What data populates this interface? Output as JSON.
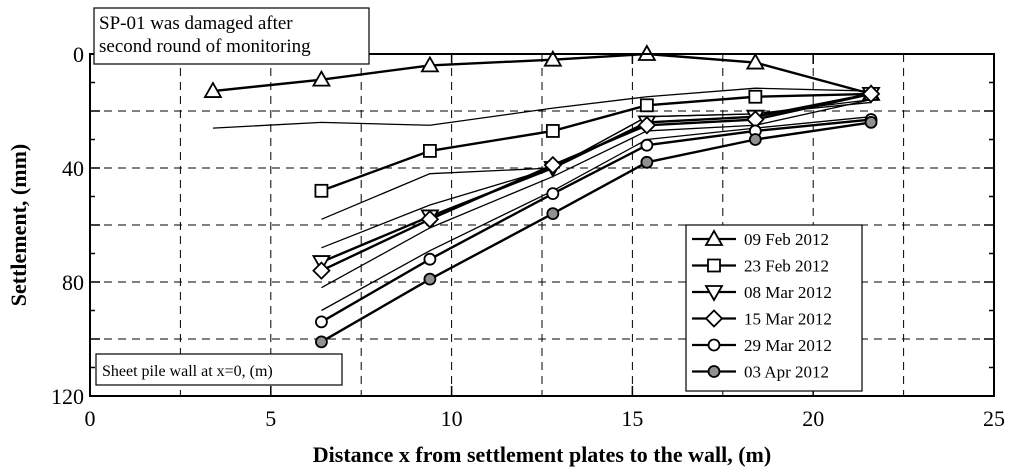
{
  "chart_data": {
    "type": "line",
    "xlabel": "Distance x from settlement plates to the wall, (m)",
    "ylabel": "Settlement, (mm)",
    "xlim": [
      0,
      25
    ],
    "ylim": [
      120,
      0
    ],
    "y_inverted": true,
    "xticks": [
      0,
      5,
      10,
      15,
      20,
      25
    ],
    "yticks": [
      0,
      40,
      80,
      120
    ],
    "grid": "dashed",
    "legend_position": "bottom-right",
    "annotations": [
      {
        "lines": [
          "SP-01 was damaged after",
          "second round of monitoring"
        ],
        "position": "top-left"
      },
      {
        "lines": [
          "Sheet pile wall at x=0, (m)"
        ],
        "position": "bottom-left"
      }
    ],
    "series": [
      {
        "name": "09 Feb 2012",
        "marker": "triangle-up",
        "x": [
          3.4,
          6.4,
          9.4,
          12.8,
          15.4,
          18.4,
          21.6
        ],
        "y": [
          13,
          9,
          4,
          2,
          0,
          3,
          14
        ]
      },
      {
        "name": "23 Feb 2012",
        "marker": "square",
        "x": [
          6.4,
          9.4,
          12.8,
          15.4,
          18.4,
          21.6
        ],
        "y": [
          48,
          34,
          27,
          18,
          15,
          14
        ]
      },
      {
        "name": "08 Mar 2012",
        "marker": "triangle-down",
        "x": [
          6.4,
          9.4,
          12.8,
          15.4,
          18.4,
          21.6
        ],
        "y": [
          73,
          57,
          40,
          24,
          22,
          14
        ]
      },
      {
        "name": "15 Mar 2012",
        "marker": "diamond",
        "x": [
          6.4,
          9.4,
          12.8,
          15.4,
          18.4,
          21.6
        ],
        "y": [
          76,
          58,
          39,
          25,
          23,
          14
        ]
      },
      {
        "name": "29 Mar 2012",
        "marker": "circle",
        "x": [
          6.4,
          9.4,
          12.8,
          15.4,
          18.4,
          21.6
        ],
        "y": [
          94,
          72,
          49,
          32,
          27,
          23
        ]
      },
      {
        "name": "03 Apr 2012",
        "marker": "circle-filled",
        "x": [
          6.4,
          9.4,
          12.8,
          15.4,
          18.4,
          21.6
        ],
        "y": [
          101,
          79,
          56,
          38,
          30,
          24
        ]
      }
    ],
    "unlabeled_lines": [
      {
        "x": [
          3.4,
          6.4,
          9.4,
          12.8,
          15.4,
          18.4,
          21.6
        ],
        "y": [
          26,
          24,
          25,
          19,
          15,
          12,
          13
        ]
      },
      {
        "x": [
          6.4,
          9.4,
          12.8,
          15.4,
          18.4,
          21.6
        ],
        "y": [
          58,
          42,
          40,
          22,
          21,
          17
        ]
      },
      {
        "x": [
          6.4,
          9.4,
          12.8,
          15.4,
          18.4,
          21.6
        ],
        "y": [
          68,
          53,
          40,
          22,
          21,
          16
        ]
      },
      {
        "x": [
          6.4,
          9.4,
          12.8,
          15.4,
          18.4,
          21.6
        ],
        "y": [
          82,
          61,
          43,
          27,
          25,
          16
        ]
      },
      {
        "x": [
          6.4,
          9.4,
          12.8,
          15.4,
          18.4,
          21.6
        ],
        "y": [
          90,
          69,
          48,
          30,
          26,
          22
        ]
      }
    ]
  }
}
